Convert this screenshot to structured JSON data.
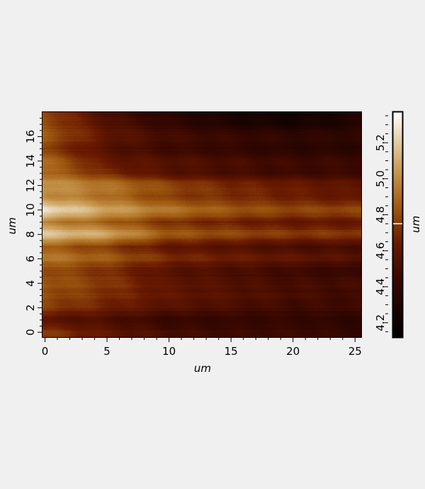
{
  "chart_data": {
    "type": "heatmap",
    "title": "",
    "xlabel": "um",
    "ylabel": "um",
    "colorbar_label": "um",
    "xlim": [
      -0.2,
      25.5
    ],
    "ylim": [
      -0.4,
      18.0
    ],
    "x_ticks": [
      "0",
      "5",
      "10",
      "15",
      "20",
      "25"
    ],
    "y_ticks": [
      "0",
      "2",
      "4",
      "6",
      "8",
      "10",
      "12",
      "14",
      "16"
    ],
    "colorbar_range": [
      4.12,
      5.37
    ],
    "colorbar_ticks": [
      "4.2",
      "4.4",
      "4.6",
      "4.8",
      "5.0",
      "5.2"
    ],
    "colorbar_marker": 4.75,
    "colormap": [
      "#000000",
      "#3a0800",
      "#6a1a00",
      "#a05a10",
      "#c89a50",
      "#ffffff"
    ],
    "grid_x": [
      0,
      5,
      10,
      15,
      20,
      25
    ],
    "grid_y": [
      0,
      1,
      2,
      3,
      4,
      5,
      6,
      7,
      8,
      9,
      10,
      11,
      12,
      13,
      14,
      15,
      16,
      17,
      18
    ],
    "z": [
      [
        4.75,
        4.6,
        4.5,
        4.45,
        4.45,
        4.4
      ],
      [
        4.55,
        4.5,
        4.4,
        4.4,
        4.4,
        4.35
      ],
      [
        4.75,
        4.65,
        4.55,
        4.5,
        4.45,
        4.45
      ],
      [
        4.8,
        4.7,
        4.6,
        4.55,
        4.5,
        4.45
      ],
      [
        4.85,
        4.75,
        4.6,
        4.55,
        4.5,
        4.5
      ],
      [
        4.8,
        4.7,
        4.55,
        4.5,
        4.45,
        4.4
      ],
      [
        4.95,
        4.85,
        4.7,
        4.65,
        4.6,
        4.55
      ],
      [
        4.85,
        4.75,
        4.6,
        4.55,
        4.5,
        4.5
      ],
      [
        5.2,
        5.1,
        4.85,
        4.8,
        4.75,
        4.75
      ],
      [
        4.95,
        4.85,
        4.7,
        4.65,
        4.6,
        4.6
      ],
      [
        5.3,
        5.1,
        4.95,
        4.85,
        4.8,
        4.8
      ],
      [
        5.0,
        4.9,
        4.75,
        4.7,
        4.65,
        4.6
      ],
      [
        5.05,
        4.95,
        4.8,
        4.7,
        4.65,
        4.6
      ],
      [
        4.9,
        4.7,
        4.55,
        4.5,
        4.45,
        4.45
      ],
      [
        4.9,
        4.6,
        4.55,
        4.5,
        4.45,
        4.45
      ],
      [
        4.75,
        4.55,
        4.45,
        4.4,
        4.35,
        4.35
      ],
      [
        4.85,
        4.6,
        4.5,
        4.45,
        4.4,
        4.4
      ],
      [
        4.8,
        4.55,
        4.4,
        4.3,
        4.25,
        4.3
      ],
      [
        4.8,
        4.5,
        4.35,
        4.25,
        4.2,
        4.3
      ]
    ]
  }
}
